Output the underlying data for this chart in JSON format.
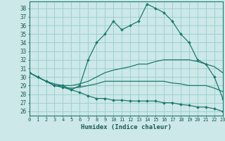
{
  "title": "",
  "xlabel": "Humidex (Indice chaleur)",
  "bg_color": "#cce8e8",
  "grid_color": "#99cccc",
  "line_color": "#1a7a6e",
  "xlim": [
    0,
    23
  ],
  "ylim": [
    25.5,
    38.8
  ],
  "yticks": [
    26,
    27,
    28,
    29,
    30,
    31,
    32,
    33,
    34,
    35,
    36,
    37,
    38
  ],
  "xticks": [
    0,
    1,
    2,
    3,
    4,
    5,
    6,
    7,
    8,
    9,
    10,
    11,
    12,
    13,
    14,
    15,
    16,
    17,
    18,
    19,
    20,
    21,
    22,
    23
  ],
  "x": [
    0,
    1,
    2,
    3,
    4,
    5,
    6,
    7,
    8,
    9,
    10,
    11,
    12,
    13,
    14,
    15,
    16,
    17,
    18,
    19,
    20,
    21,
    22,
    23
  ],
  "line_humidex": [
    30.5,
    30.0,
    29.5,
    29.0,
    29.0,
    28.5,
    29.0,
    32.0,
    34.0,
    35.0,
    36.5,
    35.5,
    36.0,
    36.5,
    38.5,
    38.0,
    37.5,
    36.5,
    35.0,
    34.0,
    32.0,
    31.5,
    30.0,
    27.5
  ],
  "line_avg_high": [
    30.5,
    30.0,
    29.5,
    29.2,
    29.0,
    29.0,
    29.2,
    29.5,
    30.0,
    30.5,
    30.8,
    31.0,
    31.2,
    31.5,
    31.5,
    31.8,
    32.0,
    32.0,
    32.0,
    32.0,
    31.8,
    31.5,
    31.2,
    30.5
  ],
  "line_avg_low": [
    30.5,
    30.0,
    29.5,
    29.0,
    28.8,
    28.7,
    28.8,
    29.0,
    29.2,
    29.5,
    29.5,
    29.5,
    29.5,
    29.5,
    29.5,
    29.5,
    29.5,
    29.3,
    29.2,
    29.0,
    29.0,
    29.0,
    28.7,
    28.3
  ],
  "line_min": [
    30.5,
    30.0,
    29.5,
    29.0,
    28.8,
    28.5,
    28.2,
    27.8,
    27.5,
    27.5,
    27.3,
    27.3,
    27.2,
    27.2,
    27.2,
    27.2,
    27.0,
    27.0,
    26.8,
    26.7,
    26.5,
    26.5,
    26.3,
    26.0
  ]
}
